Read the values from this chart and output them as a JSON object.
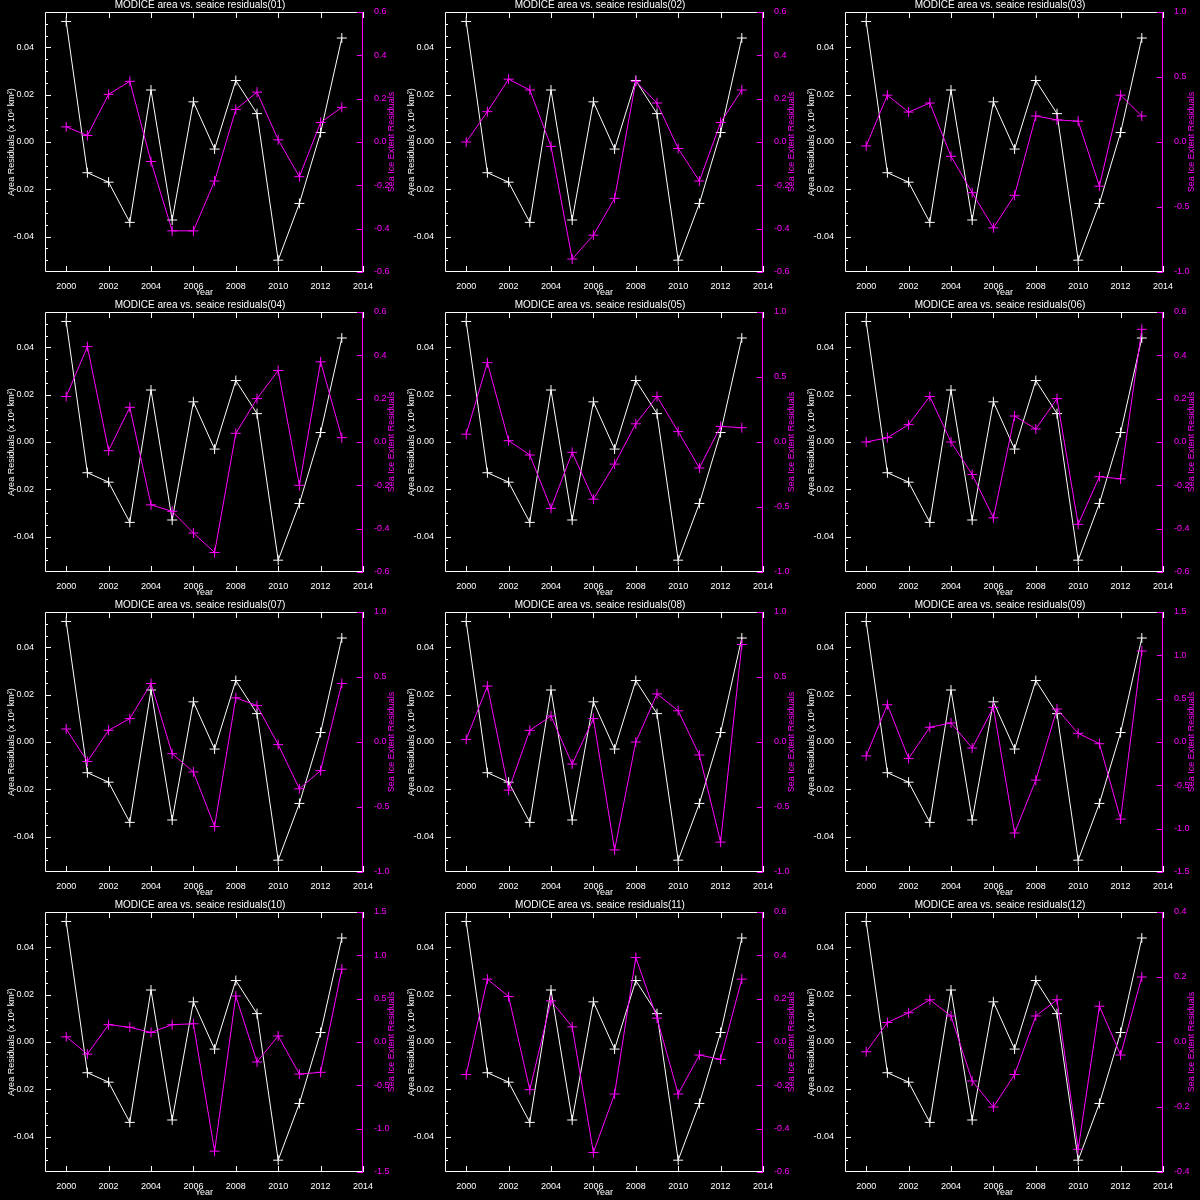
{
  "chart_data": [
    {
      "type": "line",
      "title": "MODICE area vs. seaice residuals(01)",
      "xlabel": "Year",
      "ylabel": "Area Residuals (x 10⁶ km²)",
      "y2label": "Sea Ice Extent Residuals",
      "marker": "cross",
      "x": [
        2000,
        2001,
        2002,
        2003,
        2004,
        2005,
        2006,
        2007,
        2008,
        2009,
        2010,
        2011,
        2012,
        2013
      ],
      "series": [
        {
          "color": "#ffffff",
          "values": [
            0.051,
            -0.013,
            -0.017,
            -0.034,
            0.022,
            -0.033,
            0.017,
            -0.003,
            0.026,
            0.012,
            -0.05,
            -0.026,
            0.004,
            0.044
          ]
        },
        {
          "color": "#ff00ff",
          "axis": "y2",
          "values": [
            0.07,
            0.03,
            0.22,
            0.28,
            -0.09,
            -0.41,
            -0.41,
            -0.18,
            0.15,
            0.23,
            0.01,
            -0.16,
            0.09,
            0.16
          ]
        }
      ],
      "xlim": [
        1999,
        2014
      ],
      "xticks": [
        2000,
        2002,
        2004,
        2006,
        2008,
        2010,
        2012,
        2014
      ],
      "ylim": [
        -0.055,
        0.055
      ],
      "yticks": [
        {
          "value": -0.05,
          "label": null
        },
        {
          "value": -0.045,
          "label": null
        },
        -0.04,
        {
          "value": -0.035,
          "label": null
        },
        {
          "value": -0.03,
          "label": null
        },
        {
          "value": -0.025,
          "label": null
        },
        -0.02,
        {
          "value": -0.015,
          "label": null
        },
        {
          "value": -0.01,
          "label": null
        },
        {
          "value": -0.005,
          "label": null
        },
        {
          "value": 0,
          "label": "0.00"
        },
        {
          "value": 0.005,
          "label": null
        },
        {
          "value": 0.01,
          "label": null
        },
        {
          "value": 0.015,
          "label": null
        },
        0.02,
        {
          "value": 0.025,
          "label": null
        },
        {
          "value": 0.03,
          "label": null
        },
        {
          "value": 0.035,
          "label": null
        },
        0.04,
        {
          "value": 0.045,
          "label": null
        },
        {
          "value": 0.05,
          "label": null
        }
      ],
      "y2lim": [
        -0.6,
        0.6
      ],
      "y2ticks": [
        -0.6,
        -0.4,
        -0.2,
        {
          "value": 0,
          "label": "0.0"
        },
        0.2,
        0.4,
        0.6
      ]
    },
    {
      "type": "line",
      "title": "MODICE area vs. seaice residuals(02)",
      "xlabel": "Year",
      "ylabel": "Area Residuals (x 10⁶ km²)",
      "y2label": "Sea Ice Extent Residuals",
      "marker": "cross",
      "x": [
        2000,
        2001,
        2002,
        2003,
        2004,
        2005,
        2006,
        2007,
        2008,
        2009,
        2010,
        2011,
        2012,
        2013
      ],
      "series": [
        {
          "color": "#ffffff",
          "values": [
            0.051,
            -0.013,
            -0.017,
            -0.034,
            0.022,
            -0.033,
            0.017,
            -0.003,
            0.026,
            0.012,
            -0.05,
            -0.026,
            0.004,
            0.044
          ]
        },
        {
          "color": "#ff00ff",
          "axis": "y2",
          "values": [
            0,
            0.14,
            0.29,
            0.24,
            -0.02,
            -0.54,
            -0.43,
            -0.26,
            0.28,
            0.18,
            -0.03,
            -0.18,
            0.09,
            0.24
          ]
        }
      ],
      "xlim": [
        1999,
        2014
      ],
      "xticks": [
        2000,
        2002,
        2004,
        2006,
        2008,
        2010,
        2012,
        2014
      ],
      "ylim": [
        -0.055,
        0.055
      ],
      "yticks": [
        {
          "value": -0.05,
          "label": null
        },
        {
          "value": -0.045,
          "label": null
        },
        -0.04,
        {
          "value": -0.035,
          "label": null
        },
        {
          "value": -0.03,
          "label": null
        },
        {
          "value": -0.025,
          "label": null
        },
        -0.02,
        {
          "value": -0.015,
          "label": null
        },
        {
          "value": -0.01,
          "label": null
        },
        {
          "value": -0.005,
          "label": null
        },
        {
          "value": 0,
          "label": "0.00"
        },
        {
          "value": 0.005,
          "label": null
        },
        {
          "value": 0.01,
          "label": null
        },
        {
          "value": 0.015,
          "label": null
        },
        0.02,
        {
          "value": 0.025,
          "label": null
        },
        {
          "value": 0.03,
          "label": null
        },
        {
          "value": 0.035,
          "label": null
        },
        0.04,
        {
          "value": 0.045,
          "label": null
        },
        {
          "value": 0.05,
          "label": null
        }
      ],
      "y2lim": [
        -0.6,
        0.6
      ],
      "y2ticks": [
        -0.6,
        -0.4,
        -0.2,
        {
          "value": 0,
          "label": "0.0"
        },
        0.2,
        0.4,
        0.6
      ]
    },
    {
      "type": "line",
      "title": "MODICE area vs. seaice residuals(03)",
      "xlabel": "Year",
      "ylabel": "Area Residuals (x 10⁶ km²)",
      "y2label": "Sea Ice Extent Residuals",
      "marker": "cross",
      "x": [
        2000,
        2001,
        2002,
        2003,
        2004,
        2005,
        2006,
        2007,
        2008,
        2009,
        2010,
        2011,
        2012,
        2013
      ],
      "series": [
        {
          "color": "#ffffff",
          "values": [
            0.051,
            -0.013,
            -0.017,
            -0.034,
            0.022,
            -0.033,
            0.017,
            -0.003,
            0.026,
            0.012,
            -0.05,
            -0.026,
            0.004,
            0.044
          ]
        },
        {
          "color": "#ff00ff",
          "axis": "y2",
          "values": [
            -0.03,
            0.36,
            0.23,
            0.3,
            -0.11,
            -0.39,
            -0.66,
            -0.41,
            0.2,
            0.17,
            0.16,
            -0.34,
            0.36,
            0.2
          ]
        }
      ],
      "xlim": [
        1999,
        2014
      ],
      "xticks": [
        2000,
        2002,
        2004,
        2006,
        2008,
        2010,
        2012,
        2014
      ],
      "ylim": [
        -0.055,
        0.055
      ],
      "yticks": [
        {
          "value": -0.05,
          "label": null
        },
        {
          "value": -0.045,
          "label": null
        },
        -0.04,
        {
          "value": -0.035,
          "label": null
        },
        {
          "value": -0.03,
          "label": null
        },
        {
          "value": -0.025,
          "label": null
        },
        -0.02,
        {
          "value": -0.015,
          "label": null
        },
        {
          "value": -0.01,
          "label": null
        },
        {
          "value": -0.005,
          "label": null
        },
        {
          "value": 0,
          "label": "0.00"
        },
        {
          "value": 0.005,
          "label": null
        },
        {
          "value": 0.01,
          "label": null
        },
        {
          "value": 0.015,
          "label": null
        },
        0.02,
        {
          "value": 0.025,
          "label": null
        },
        {
          "value": 0.03,
          "label": null
        },
        {
          "value": 0.035,
          "label": null
        },
        0.04,
        {
          "value": 0.045,
          "label": null
        },
        {
          "value": 0.05,
          "label": null
        }
      ],
      "y2lim": [
        -1,
        1
      ],
      "y2ticks": [
        {
          "value": -1,
          "label": "-1.0"
        },
        -0.5,
        {
          "value": 0,
          "label": "0.0"
        },
        0.5,
        {
          "value": 1,
          "label": "1.0"
        }
      ]
    },
    {
      "type": "line",
      "title": "MODICE area vs. seaice residuals(04)",
      "xlabel": "Year",
      "ylabel": "Area Residuals (x 10⁶ km²)",
      "y2label": "Sea Ice Extent Residuals",
      "marker": "cross",
      "x": [
        2000,
        2001,
        2002,
        2003,
        2004,
        2005,
        2006,
        2007,
        2008,
        2009,
        2010,
        2011,
        2012,
        2013
      ],
      "series": [
        {
          "color": "#ffffff",
          "values": [
            0.051,
            -0.013,
            -0.017,
            -0.034,
            0.022,
            -0.033,
            0.017,
            -0.003,
            0.026,
            0.012,
            -0.05,
            -0.026,
            0.004,
            0.044
          ]
        },
        {
          "color": "#ff00ff",
          "axis": "y2",
          "values": [
            0.21,
            0.44,
            -0.04,
            0.16,
            -0.29,
            -0.32,
            -0.42,
            -0.51,
            0.04,
            0.2,
            0.33,
            -0.2,
            0.37,
            0.02
          ]
        }
      ],
      "xlim": [
        1999,
        2014
      ],
      "xticks": [
        2000,
        2002,
        2004,
        2006,
        2008,
        2010,
        2012,
        2014
      ],
      "ylim": [
        -0.055,
        0.055
      ],
      "yticks": [
        {
          "value": -0.05,
          "label": null
        },
        {
          "value": -0.045,
          "label": null
        },
        -0.04,
        {
          "value": -0.035,
          "label": null
        },
        {
          "value": -0.03,
          "label": null
        },
        {
          "value": -0.025,
          "label": null
        },
        -0.02,
        {
          "value": -0.015,
          "label": null
        },
        {
          "value": -0.01,
          "label": null
        },
        {
          "value": -0.005,
          "label": null
        },
        {
          "value": 0,
          "label": "0.00"
        },
        {
          "value": 0.005,
          "label": null
        },
        {
          "value": 0.01,
          "label": null
        },
        {
          "value": 0.015,
          "label": null
        },
        0.02,
        {
          "value": 0.025,
          "label": null
        },
        {
          "value": 0.03,
          "label": null
        },
        {
          "value": 0.035,
          "label": null
        },
        0.04,
        {
          "value": 0.045,
          "label": null
        },
        {
          "value": 0.05,
          "label": null
        }
      ],
      "y2lim": [
        -0.6,
        0.6
      ],
      "y2ticks": [
        -0.6,
        -0.4,
        -0.2,
        {
          "value": 0,
          "label": "0.0"
        },
        0.2,
        0.4,
        0.6
      ]
    },
    {
      "type": "line",
      "title": "MODICE area vs. seaice residuals(05)",
      "xlabel": "Year",
      "ylabel": "Area Residuals (x 10⁶ km²)",
      "y2label": "Sea Ice Extent Residuals",
      "marker": "cross",
      "x": [
        2000,
        2001,
        2002,
        2003,
        2004,
        2005,
        2006,
        2007,
        2008,
        2009,
        2010,
        2011,
        2012,
        2013
      ],
      "series": [
        {
          "color": "#ffffff",
          "values": [
            0.051,
            -0.013,
            -0.017,
            -0.034,
            0.022,
            -0.033,
            0.017,
            -0.003,
            0.026,
            0.012,
            -0.05,
            -0.026,
            0.004,
            0.044
          ]
        },
        {
          "color": "#ff00ff",
          "axis": "y2",
          "values": [
            0.06,
            0.61,
            0.01,
            -0.1,
            -0.51,
            -0.08,
            -0.44,
            -0.17,
            0.14,
            0.35,
            0.08,
            -0.2,
            0.12,
            0.11
          ]
        }
      ],
      "xlim": [
        1999,
        2014
      ],
      "xticks": [
        2000,
        2002,
        2004,
        2006,
        2008,
        2010,
        2012,
        2014
      ],
      "ylim": [
        -0.055,
        0.055
      ],
      "yticks": [
        {
          "value": -0.05,
          "label": null
        },
        {
          "value": -0.045,
          "label": null
        },
        -0.04,
        {
          "value": -0.035,
          "label": null
        },
        {
          "value": -0.03,
          "label": null
        },
        {
          "value": -0.025,
          "label": null
        },
        -0.02,
        {
          "value": -0.015,
          "label": null
        },
        {
          "value": -0.01,
          "label": null
        },
        {
          "value": -0.005,
          "label": null
        },
        {
          "value": 0,
          "label": "0.00"
        },
        {
          "value": 0.005,
          "label": null
        },
        {
          "value": 0.01,
          "label": null
        },
        {
          "value": 0.015,
          "label": null
        },
        0.02,
        {
          "value": 0.025,
          "label": null
        },
        {
          "value": 0.03,
          "label": null
        },
        {
          "value": 0.035,
          "label": null
        },
        0.04,
        {
          "value": 0.045,
          "label": null
        },
        {
          "value": 0.05,
          "label": null
        }
      ],
      "y2lim": [
        -1,
        1
      ],
      "y2ticks": [
        {
          "value": -1,
          "label": "-1.0"
        },
        -0.5,
        {
          "value": 0,
          "label": "0.0"
        },
        0.5,
        {
          "value": 1,
          "label": "1.0"
        }
      ]
    },
    {
      "type": "line",
      "title": "MODICE area vs. seaice residuals(06)",
      "xlabel": "Year",
      "ylabel": "Area Residuals (x 10⁶ km²)",
      "y2label": "Sea Ice Extent Residuals",
      "marker": "cross",
      "x": [
        2000,
        2001,
        2002,
        2003,
        2004,
        2005,
        2006,
        2007,
        2008,
        2009,
        2010,
        2011,
        2012,
        2013
      ],
      "series": [
        {
          "color": "#ffffff",
          "values": [
            0.051,
            -0.013,
            -0.017,
            -0.034,
            0.022,
            -0.033,
            0.017,
            -0.003,
            0.026,
            0.012,
            -0.05,
            -0.026,
            0.004,
            0.044
          ]
        },
        {
          "color": "#ff00ff",
          "axis": "y2",
          "values": [
            0,
            0.02,
            0.08,
            0.21,
            0,
            -0.15,
            -0.35,
            0.12,
            0.06,
            0.2,
            -0.38,
            -0.16,
            -0.17,
            0.52
          ]
        }
      ],
      "xlim": [
        1999,
        2014
      ],
      "xticks": [
        2000,
        2002,
        2004,
        2006,
        2008,
        2010,
        2012,
        2014
      ],
      "ylim": [
        -0.055,
        0.055
      ],
      "yticks": [
        {
          "value": -0.05,
          "label": null
        },
        {
          "value": -0.045,
          "label": null
        },
        -0.04,
        {
          "value": -0.035,
          "label": null
        },
        {
          "value": -0.03,
          "label": null
        },
        {
          "value": -0.025,
          "label": null
        },
        -0.02,
        {
          "value": -0.015,
          "label": null
        },
        {
          "value": -0.01,
          "label": null
        },
        {
          "value": -0.005,
          "label": null
        },
        {
          "value": 0,
          "label": "0.00"
        },
        {
          "value": 0.005,
          "label": null
        },
        {
          "value": 0.01,
          "label": null
        },
        {
          "value": 0.015,
          "label": null
        },
        0.02,
        {
          "value": 0.025,
          "label": null
        },
        {
          "value": 0.03,
          "label": null
        },
        {
          "value": 0.035,
          "label": null
        },
        0.04,
        {
          "value": 0.045,
          "label": null
        },
        {
          "value": 0.05,
          "label": null
        }
      ],
      "y2lim": [
        -0.6,
        0.6
      ],
      "y2ticks": [
        -0.6,
        -0.4,
        -0.2,
        {
          "value": 0,
          "label": "0.0"
        },
        0.2,
        0.4,
        0.6
      ]
    },
    {
      "type": "line",
      "title": "MODICE area vs. seaice residuals(07)",
      "xlabel": "Year",
      "ylabel": "Area Residuals (x 10⁶ km²)",
      "y2label": "Sea Ice Extent Residuals",
      "marker": "cross",
      "x": [
        2000,
        2001,
        2002,
        2003,
        2004,
        2005,
        2006,
        2007,
        2008,
        2009,
        2010,
        2011,
        2012,
        2013
      ],
      "series": [
        {
          "color": "#ffffff",
          "values": [
            0.051,
            -0.013,
            -0.017,
            -0.034,
            0.022,
            -0.033,
            0.017,
            -0.003,
            0.026,
            0.012,
            -0.05,
            -0.026,
            0.004,
            0.044
          ]
        },
        {
          "color": "#ff00ff",
          "axis": "y2",
          "values": [
            0.1,
            -0.15,
            0.09,
            0.18,
            0.45,
            -0.09,
            -0.23,
            -0.65,
            0.34,
            0.28,
            -0.02,
            -0.36,
            -0.22,
            0.45
          ]
        }
      ],
      "xlim": [
        1999,
        2014
      ],
      "xticks": [
        2000,
        2002,
        2004,
        2006,
        2008,
        2010,
        2012,
        2014
      ],
      "ylim": [
        -0.055,
        0.055
      ],
      "yticks": [
        {
          "value": -0.05,
          "label": null
        },
        {
          "value": -0.045,
          "label": null
        },
        -0.04,
        {
          "value": -0.035,
          "label": null
        },
        {
          "value": -0.03,
          "label": null
        },
        {
          "value": -0.025,
          "label": null
        },
        -0.02,
        {
          "value": -0.015,
          "label": null
        },
        {
          "value": -0.01,
          "label": null
        },
        {
          "value": -0.005,
          "label": null
        },
        {
          "value": 0,
          "label": "0.00"
        },
        {
          "value": 0.005,
          "label": null
        },
        {
          "value": 0.01,
          "label": null
        },
        {
          "value": 0.015,
          "label": null
        },
        0.02,
        {
          "value": 0.025,
          "label": null
        },
        {
          "value": 0.03,
          "label": null
        },
        {
          "value": 0.035,
          "label": null
        },
        0.04,
        {
          "value": 0.045,
          "label": null
        },
        {
          "value": 0.05,
          "label": null
        }
      ],
      "y2lim": [
        -1,
        1
      ],
      "y2ticks": [
        {
          "value": -1,
          "label": "-1.0"
        },
        -0.5,
        {
          "value": 0,
          "label": "0.0"
        },
        0.5,
        {
          "value": 1,
          "label": "1.0"
        }
      ]
    },
    {
      "type": "line",
      "title": "MODICE area vs. seaice residuals(08)",
      "xlabel": "Year",
      "ylabel": "Area Residuals (x 10⁶ km²)",
      "y2label": "Sea Ice Extent Residuals",
      "marker": "cross",
      "x": [
        2000,
        2001,
        2002,
        2003,
        2004,
        2005,
        2006,
        2007,
        2008,
        2009,
        2010,
        2011,
        2012,
        2013
      ],
      "series": [
        {
          "color": "#ffffff",
          "values": [
            0.051,
            -0.013,
            -0.017,
            -0.034,
            0.022,
            -0.033,
            0.017,
            -0.003,
            0.026,
            0.012,
            -0.05,
            -0.026,
            0.004,
            0.044
          ]
        },
        {
          "color": "#ff00ff",
          "axis": "y2",
          "values": [
            0.02,
            0.43,
            -0.37,
            0.09,
            0.2,
            -0.17,
            0.18,
            -0.83,
            0,
            0.37,
            0.24,
            -0.1,
            -0.77,
            0.75
          ]
        }
      ],
      "xlim": [
        1999,
        2014
      ],
      "xticks": [
        2000,
        2002,
        2004,
        2006,
        2008,
        2010,
        2012,
        2014
      ],
      "ylim": [
        -0.055,
        0.055
      ],
      "yticks": [
        {
          "value": -0.05,
          "label": null
        },
        {
          "value": -0.045,
          "label": null
        },
        -0.04,
        {
          "value": -0.035,
          "label": null
        },
        {
          "value": -0.03,
          "label": null
        },
        {
          "value": -0.025,
          "label": null
        },
        -0.02,
        {
          "value": -0.015,
          "label": null
        },
        {
          "value": -0.01,
          "label": null
        },
        {
          "value": -0.005,
          "label": null
        },
        {
          "value": 0,
          "label": "0.00"
        },
        {
          "value": 0.005,
          "label": null
        },
        {
          "value": 0.01,
          "label": null
        },
        {
          "value": 0.015,
          "label": null
        },
        0.02,
        {
          "value": 0.025,
          "label": null
        },
        {
          "value": 0.03,
          "label": null
        },
        {
          "value": 0.035,
          "label": null
        },
        0.04,
        {
          "value": 0.045,
          "label": null
        },
        {
          "value": 0.05,
          "label": null
        }
      ],
      "y2lim": [
        -1,
        1
      ],
      "y2ticks": [
        {
          "value": -1,
          "label": "-1.0"
        },
        -0.5,
        {
          "value": 0,
          "label": "0.0"
        },
        0.5,
        {
          "value": 1,
          "label": "1.0"
        }
      ]
    },
    {
      "type": "line",
      "title": "MODICE area vs. seaice residuals(09)",
      "xlabel": "Year",
      "ylabel": "Area Residuals (x 10⁶ km²)",
      "y2label": "Sea Ice Extent Residuals",
      "marker": "cross",
      "x": [
        2000,
        2001,
        2002,
        2003,
        2004,
        2005,
        2006,
        2007,
        2008,
        2009,
        2010,
        2011,
        2012,
        2013
      ],
      "series": [
        {
          "color": "#ffffff",
          "values": [
            0.051,
            -0.013,
            -0.017,
            -0.034,
            0.022,
            -0.033,
            0.017,
            -0.003,
            0.026,
            0.012,
            -0.05,
            -0.026,
            0.004,
            0.044
          ]
        },
        {
          "color": "#ff00ff",
          "axis": "y2",
          "values": [
            -0.16,
            0.43,
            -0.19,
            0.17,
            0.22,
            -0.07,
            0.4,
            -1.05,
            -0.44,
            0.38,
            0.1,
            -0.02,
            -0.89,
            1.05
          ]
        }
      ],
      "xlim": [
        1999,
        2014
      ],
      "xticks": [
        2000,
        2002,
        2004,
        2006,
        2008,
        2010,
        2012,
        2014
      ],
      "ylim": [
        -0.055,
        0.055
      ],
      "yticks": [
        {
          "value": -0.05,
          "label": null
        },
        {
          "value": -0.045,
          "label": null
        },
        -0.04,
        {
          "value": -0.035,
          "label": null
        },
        {
          "value": -0.03,
          "label": null
        },
        {
          "value": -0.025,
          "label": null
        },
        -0.02,
        {
          "value": -0.015,
          "label": null
        },
        {
          "value": -0.01,
          "label": null
        },
        {
          "value": -0.005,
          "label": null
        },
        {
          "value": 0,
          "label": "0.00"
        },
        {
          "value": 0.005,
          "label": null
        },
        {
          "value": 0.01,
          "label": null
        },
        {
          "value": 0.015,
          "label": null
        },
        0.02,
        {
          "value": 0.025,
          "label": null
        },
        {
          "value": 0.03,
          "label": null
        },
        {
          "value": 0.035,
          "label": null
        },
        0.04,
        {
          "value": 0.045,
          "label": null
        },
        {
          "value": 0.05,
          "label": null
        }
      ],
      "y2lim": [
        -1.5,
        1.5
      ],
      "y2ticks": [
        -1.5,
        {
          "value": -1,
          "label": "-1.0"
        },
        -0.5,
        {
          "value": 0,
          "label": "0.0"
        },
        0.5,
        {
          "value": 1,
          "label": "1.0"
        },
        1.5
      ]
    },
    {
      "type": "line",
      "title": "MODICE area vs. seaice residuals(10)",
      "xlabel": "Year",
      "ylabel": "Area Residuals (x 10⁶ km²)",
      "y2label": "Sea Ice Extent Residuals",
      "marker": "cross",
      "x": [
        2000,
        2001,
        2002,
        2003,
        2004,
        2005,
        2006,
        2007,
        2008,
        2009,
        2010,
        2011,
        2012,
        2013
      ],
      "series": [
        {
          "color": "#ffffff",
          "values": [
            0.051,
            -0.013,
            -0.017,
            -0.034,
            0.022,
            -0.033,
            0.017,
            -0.003,
            0.026,
            0.012,
            -0.05,
            -0.026,
            0.004,
            0.044
          ]
        },
        {
          "color": "#ff00ff",
          "axis": "y2",
          "values": [
            0.06,
            -0.14,
            0.2,
            0.17,
            0.11,
            0.2,
            0.21,
            -1.26,
            0.53,
            -0.23,
            0.07,
            -0.37,
            -0.35,
            0.84
          ]
        }
      ],
      "xlim": [
        1999,
        2014
      ],
      "xticks": [
        2000,
        2002,
        2004,
        2006,
        2008,
        2010,
        2012,
        2014
      ],
      "ylim": [
        -0.055,
        0.055
      ],
      "yticks": [
        {
          "value": -0.05,
          "label": null
        },
        {
          "value": -0.045,
          "label": null
        },
        -0.04,
        {
          "value": -0.035,
          "label": null
        },
        {
          "value": -0.03,
          "label": null
        },
        {
          "value": -0.025,
          "label": null
        },
        -0.02,
        {
          "value": -0.015,
          "label": null
        },
        {
          "value": -0.01,
          "label": null
        },
        {
          "value": -0.005,
          "label": null
        },
        {
          "value": 0,
          "label": "0.00"
        },
        {
          "value": 0.005,
          "label": null
        },
        {
          "value": 0.01,
          "label": null
        },
        {
          "value": 0.015,
          "label": null
        },
        0.02,
        {
          "value": 0.025,
          "label": null
        },
        {
          "value": 0.03,
          "label": null
        },
        {
          "value": 0.035,
          "label": null
        },
        0.04,
        {
          "value": 0.045,
          "label": null
        },
        {
          "value": 0.05,
          "label": null
        }
      ],
      "y2lim": [
        -1.5,
        1.5
      ],
      "y2ticks": [
        -1.5,
        {
          "value": -1,
          "label": "-1.0"
        },
        -0.5,
        {
          "value": 0,
          "label": "0.0"
        },
        0.5,
        {
          "value": 1,
          "label": "1.0"
        },
        1.5
      ]
    },
    {
      "type": "line",
      "title": "MODICE area vs. seaice residuals(11)",
      "xlabel": "Year",
      "ylabel": "Area Residuals (x 10⁶ km²)",
      "y2label": "Sea Ice Extent Residuals",
      "marker": "cross",
      "x": [
        2000,
        2001,
        2002,
        2003,
        2004,
        2005,
        2006,
        2007,
        2008,
        2009,
        2010,
        2011,
        2012,
        2013
      ],
      "series": [
        {
          "color": "#ffffff",
          "values": [
            0.051,
            -0.013,
            -0.017,
            -0.034,
            0.022,
            -0.033,
            0.017,
            -0.003,
            0.026,
            0.012,
            -0.05,
            -0.026,
            0.004,
            0.044
          ]
        },
        {
          "color": "#ff00ff",
          "axis": "y2",
          "values": [
            -0.15,
            0.29,
            0.21,
            -0.22,
            0.19,
            0.07,
            -0.51,
            -0.24,
            0.39,
            0.11,
            -0.24,
            -0.06,
            -0.08,
            0.29
          ]
        }
      ],
      "xlim": [
        1999,
        2014
      ],
      "xticks": [
        2000,
        2002,
        2004,
        2006,
        2008,
        2010,
        2012,
        2014
      ],
      "ylim": [
        -0.055,
        0.055
      ],
      "yticks": [
        {
          "value": -0.05,
          "label": null
        },
        {
          "value": -0.045,
          "label": null
        },
        -0.04,
        {
          "value": -0.035,
          "label": null
        },
        {
          "value": -0.03,
          "label": null
        },
        {
          "value": -0.025,
          "label": null
        },
        -0.02,
        {
          "value": -0.015,
          "label": null
        },
        {
          "value": -0.01,
          "label": null
        },
        {
          "value": -0.005,
          "label": null
        },
        {
          "value": 0,
          "label": "0.00"
        },
        {
          "value": 0.005,
          "label": null
        },
        {
          "value": 0.01,
          "label": null
        },
        {
          "value": 0.015,
          "label": null
        },
        0.02,
        {
          "value": 0.025,
          "label": null
        },
        {
          "value": 0.03,
          "label": null
        },
        {
          "value": 0.035,
          "label": null
        },
        0.04,
        {
          "value": 0.045,
          "label": null
        },
        {
          "value": 0.05,
          "label": null
        }
      ],
      "y2lim": [
        -0.6,
        0.6
      ],
      "y2ticks": [
        -0.6,
        -0.4,
        -0.2,
        {
          "value": 0,
          "label": "0.0"
        },
        0.2,
        0.4,
        0.6
      ]
    },
    {
      "type": "line",
      "title": "MODICE area vs. seaice residuals(12)",
      "xlabel": "Year",
      "ylabel": "Area Residuals (x 10⁶ km²)",
      "y2label": "Sea Ice Extent Residuals",
      "marker": "cross",
      "x": [
        2000,
        2001,
        2002,
        2003,
        2004,
        2005,
        2006,
        2007,
        2008,
        2009,
        2010,
        2011,
        2012,
        2013
      ],
      "series": [
        {
          "color": "#ffffff",
          "values": [
            0.051,
            -0.013,
            -0.017,
            -0.034,
            0.022,
            -0.033,
            0.017,
            -0.003,
            0.026,
            0.012,
            -0.05,
            -0.026,
            0.004,
            0.044
          ]
        },
        {
          "color": "#ff00ff",
          "axis": "y2",
          "values": [
            -0.03,
            0.06,
            0.09,
            0.13,
            0.08,
            -0.12,
            -0.2,
            -0.1,
            0.08,
            0.13,
            -0.33,
            0.11,
            -0.04,
            0.2
          ]
        }
      ],
      "xlim": [
        1999,
        2014
      ],
      "xticks": [
        2000,
        2002,
        2004,
        2006,
        2008,
        2010,
        2012,
        2014
      ],
      "ylim": [
        -0.055,
        0.055
      ],
      "yticks": [
        {
          "value": -0.05,
          "label": null
        },
        {
          "value": -0.045,
          "label": null
        },
        -0.04,
        {
          "value": -0.035,
          "label": null
        },
        {
          "value": -0.03,
          "label": null
        },
        {
          "value": -0.025,
          "label": null
        },
        -0.02,
        {
          "value": -0.015,
          "label": null
        },
        {
          "value": -0.01,
          "label": null
        },
        {
          "value": -0.005,
          "label": null
        },
        {
          "value": 0,
          "label": "0.00"
        },
        {
          "value": 0.005,
          "label": null
        },
        {
          "value": 0.01,
          "label": null
        },
        {
          "value": 0.015,
          "label": null
        },
        0.02,
        {
          "value": 0.025,
          "label": null
        },
        {
          "value": 0.03,
          "label": null
        },
        {
          "value": 0.035,
          "label": null
        },
        0.04,
        {
          "value": 0.045,
          "label": null
        },
        {
          "value": 0.05,
          "label": null
        }
      ],
      "y2lim": [
        -0.4,
        0.4
      ],
      "y2ticks": [
        -0.4,
        -0.2,
        {
          "value": 0,
          "label": "0.0"
        },
        0.2,
        0.4
      ]
    }
  ]
}
